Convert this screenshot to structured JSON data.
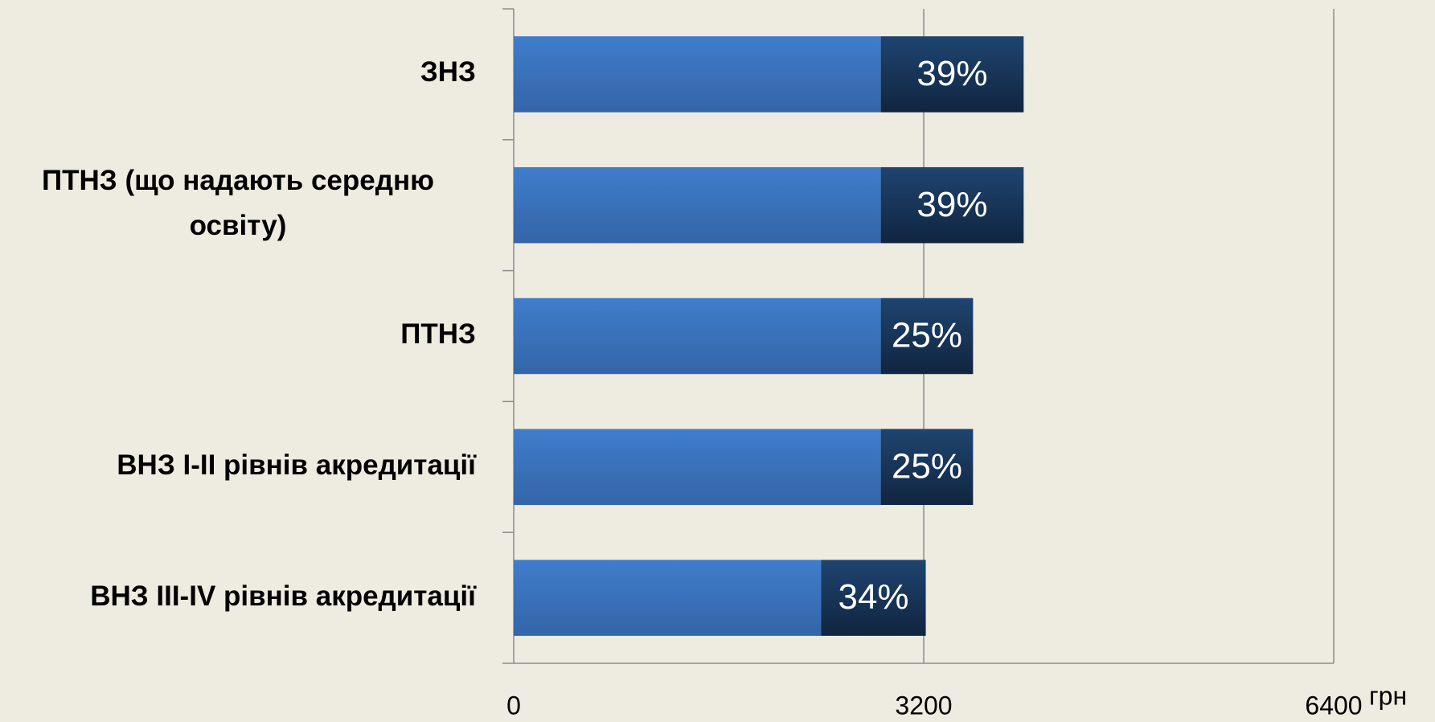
{
  "chart_data": {
    "type": "stacked-bar-horizontal",
    "categories": [
      "ЗНЗ",
      "ПТНЗ (що надають середню освіту)",
      "ПТНЗ",
      "ВНЗ І-ІІ рівнів акредитації",
      "ВНЗ ІІІ-ІV рівнів акредитації"
    ],
    "series": [
      {
        "color": "#3b74c2",
        "values": [
          2865,
          2865,
          2865,
          2865,
          2400
        ]
      },
      {
        "color": "#1b3a60",
        "values": [
          1115,
          1115,
          720,
          720,
          816
        ],
        "value_labels": [
          "39%",
          "39%",
          "25%",
          "25%",
          "34%"
        ]
      }
    ],
    "xlim": [
      0,
      6400
    ],
    "xticks": [
      0,
      3200,
      6400
    ],
    "x_label": "грн",
    "grid": true
  }
}
